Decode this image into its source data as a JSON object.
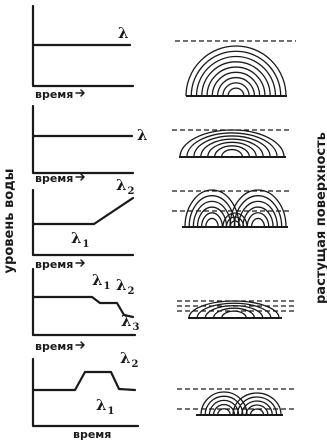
{
  "y_axis_label": "уровень воды",
  "right_label": "растущая поверхность",
  "panels": [
    {
      "time_label": "время",
      "levels": [
        {
          "symbol": "λ",
          "index": ""
        }
      ]
    },
    {
      "time_label": "время",
      "levels": [
        {
          "symbol": "λ",
          "index": ""
        }
      ]
    },
    {
      "time_label": "время",
      "levels": [
        {
          "symbol": "λ",
          "index": "2"
        },
        {
          "symbol": "λ",
          "index": "1"
        }
      ]
    },
    {
      "time_label": "время",
      "levels": [
        {
          "symbol": "λ",
          "index": "1"
        },
        {
          "symbol": "λ",
          "index": "2"
        },
        {
          "symbol": "λ",
          "index": "3"
        }
      ]
    },
    {
      "time_label": "время",
      "levels": [
        {
          "symbol": "λ",
          "index": "2"
        },
        {
          "symbol": "λ",
          "index": "1"
        }
      ]
    }
  ],
  "colors": {
    "ink": "#1a1a1a",
    "background": "#ffffff"
  }
}
